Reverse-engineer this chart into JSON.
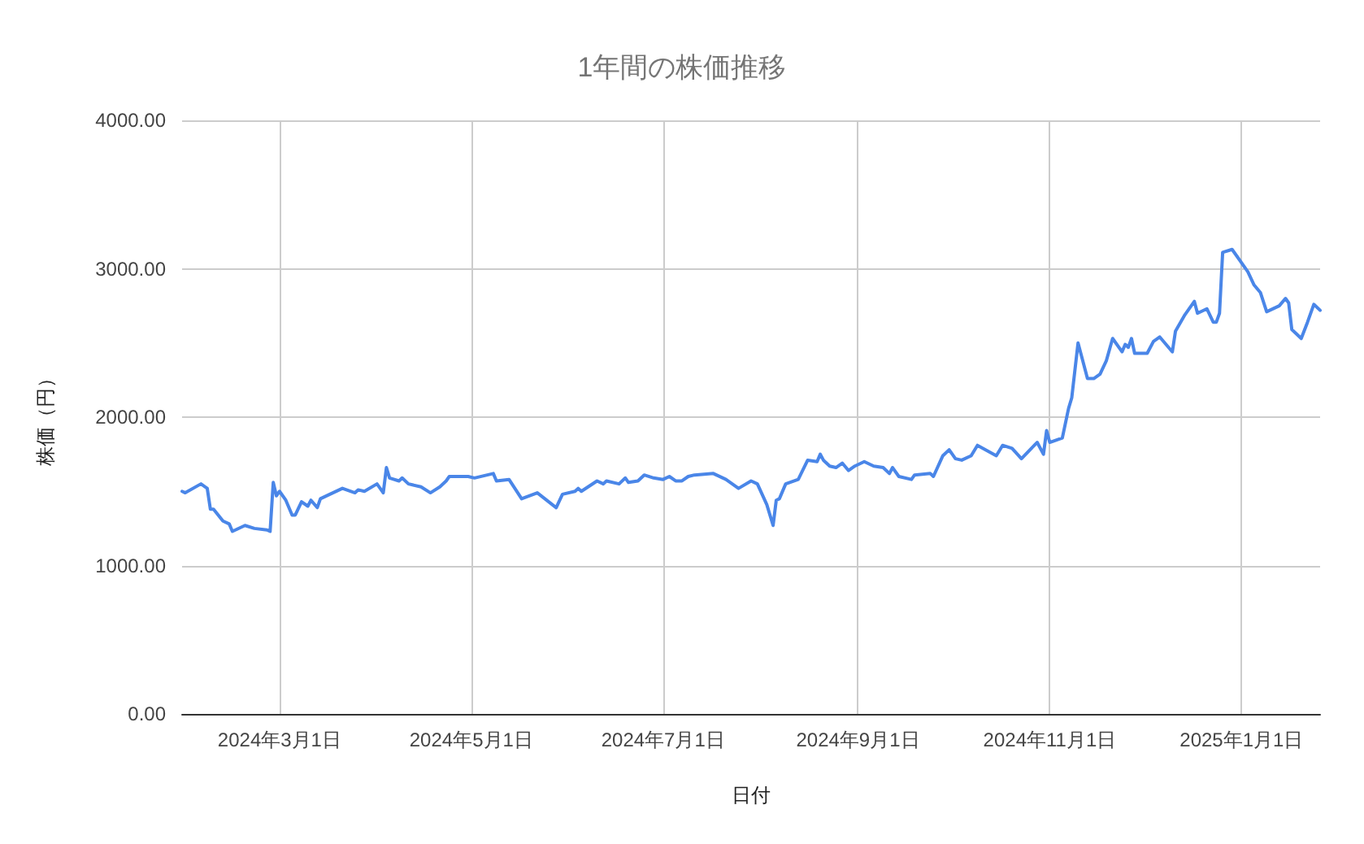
{
  "chart_data": {
    "type": "line",
    "title": "1年間の株価推移",
    "xlabel": "日付",
    "ylabel": "株価（円）",
    "x": [
      "2024-01-30",
      "2024-01-31",
      "2024-02-05",
      "2024-02-07",
      "2024-02-08",
      "2024-02-09",
      "2024-02-12",
      "2024-02-14",
      "2024-02-15",
      "2024-02-19",
      "2024-02-22",
      "2024-02-26",
      "2024-02-27",
      "2024-02-28",
      "2024-02-29",
      "2024-03-01",
      "2024-03-03",
      "2024-03-05",
      "2024-03-06",
      "2024-03-08",
      "2024-03-10",
      "2024-03-11",
      "2024-03-13",
      "2024-03-14",
      "2024-03-17",
      "2024-03-21",
      "2024-03-25",
      "2024-03-26",
      "2024-03-28",
      "2024-04-01",
      "2024-04-03",
      "2024-04-04",
      "2024-04-05",
      "2024-04-08",
      "2024-04-09",
      "2024-04-11",
      "2024-04-15",
      "2024-04-18",
      "2024-04-21",
      "2024-04-23",
      "2024-04-24",
      "2024-04-26",
      "2024-04-30",
      "2024-05-02",
      "2024-05-08",
      "2024-05-09",
      "2024-05-13",
      "2024-05-17",
      "2024-05-22",
      "2024-05-28",
      "2024-05-30",
      "2024-06-03",
      "2024-06-04",
      "2024-06-05",
      "2024-06-10",
      "2024-06-12",
      "2024-06-13",
      "2024-06-17",
      "2024-06-19",
      "2024-06-20",
      "2024-06-23",
      "2024-06-25",
      "2024-06-28",
      "2024-07-01",
      "2024-07-03",
      "2024-07-05",
      "2024-07-07",
      "2024-07-09",
      "2024-07-11",
      "2024-07-17",
      "2024-07-21",
      "2024-07-25",
      "2024-07-29",
      "2024-07-31",
      "2024-08-03",
      "2024-08-05",
      "2024-08-06",
      "2024-08-07",
      "2024-08-09",
      "2024-08-13",
      "2024-08-16",
      "2024-08-19",
      "2024-08-20",
      "2024-08-21",
      "2024-08-23",
      "2024-08-25",
      "2024-08-27",
      "2024-08-29",
      "2024-08-31",
      "2024-09-03",
      "2024-09-06",
      "2024-09-09",
      "2024-09-11",
      "2024-09-12",
      "2024-09-14",
      "2024-09-18",
      "2024-09-19",
      "2024-09-24",
      "2024-09-25",
      "2024-09-28",
      "2024-09-30",
      "2024-10-02",
      "2024-10-04",
      "2024-10-07",
      "2024-10-09",
      "2024-10-15",
      "2024-10-17",
      "2024-10-20",
      "2024-10-23",
      "2024-10-28",
      "2024-10-30",
      "2024-10-31",
      "2024-11-01",
      "2024-11-05",
      "2024-11-07",
      "2024-11-08",
      "2024-11-10",
      "2024-11-13",
      "2024-11-15",
      "2024-11-17",
      "2024-11-19",
      "2024-11-21",
      "2024-11-24",
      "2024-11-25",
      "2024-11-26",
      "2024-11-27",
      "2024-11-28",
      "2024-12-02",
      "2024-12-04",
      "2024-12-06",
      "2024-12-10",
      "2024-12-11",
      "2024-12-14",
      "2024-12-17",
      "2024-12-18",
      "2024-12-21",
      "2024-12-23",
      "2024-12-24",
      "2024-12-25",
      "2024-12-26",
      "2024-12-29",
      "2025-01-03",
      "2025-01-05",
      "2025-01-07",
      "2025-01-09",
      "2025-01-13",
      "2025-01-15",
      "2025-01-16",
      "2025-01-17",
      "2025-01-20",
      "2025-01-22",
      "2025-01-24",
      "2025-01-26"
    ],
    "series": [
      {
        "color": "#4a86e8",
        "values": [
          1500,
          1490,
          1550,
          1520,
          1380,
          1380,
          1300,
          1280,
          1230,
          1270,
          1250,
          1240,
          1230,
          1560,
          1470,
          1500,
          1440,
          1340,
          1340,
          1430,
          1400,
          1440,
          1390,
          1450,
          1480,
          1520,
          1490,
          1510,
          1500,
          1550,
          1490,
          1660,
          1590,
          1570,
          1590,
          1550,
          1530,
          1490,
          1530,
          1570,
          1600,
          1600,
          1600,
          1590,
          1620,
          1570,
          1580,
          1450,
          1490,
          1390,
          1480,
          1500,
          1520,
          1500,
          1570,
          1550,
          1570,
          1550,
          1590,
          1560,
          1570,
          1610,
          1590,
          1580,
          1600,
          1570,
          1570,
          1600,
          1610,
          1620,
          1580,
          1520,
          1570,
          1550,
          1410,
          1270,
          1440,
          1450,
          1550,
          1580,
          1710,
          1700,
          1750,
          1710,
          1670,
          1660,
          1690,
          1640,
          1670,
          1700,
          1670,
          1660,
          1620,
          1660,
          1600,
          1580,
          1610,
          1620,
          1600,
          1740,
          1780,
          1720,
          1710,
          1740,
          1810,
          1740,
          1810,
          1790,
          1720,
          1830,
          1750,
          1910,
          1830,
          1860,
          2060,
          2130,
          2500,
          2260,
          2260,
          2290,
          2380,
          2530,
          2440,
          2490,
          2470,
          2530,
          2430,
          2430,
          2510,
          2540,
          2440,
          2580,
          2690,
          2780,
          2700,
          2730,
          2640,
          2640,
          2700,
          3110,
          3130,
          2980,
          2890,
          2840,
          2710,
          2750,
          2800,
          2770,
          2590,
          2530,
          2640,
          2760,
          2720
        ]
      }
    ],
    "xlim": [
      "2024-01-30",
      "2025-01-26"
    ],
    "xticks": [
      {
        "value": "2024-03-01",
        "label": "2024年3月1日"
      },
      {
        "value": "2024-05-01",
        "label": "2024年5月1日"
      },
      {
        "value": "2024-07-01",
        "label": "2024年7月1日"
      },
      {
        "value": "2024-09-01",
        "label": "2024年9月1日"
      },
      {
        "value": "2024-11-01",
        "label": "2024年11月1日"
      },
      {
        "value": "2025-01-01",
        "label": "2025年1月1日"
      }
    ],
    "ylim": [
      0,
      4000
    ],
    "yticks": [
      {
        "value": 0,
        "label": "0.00"
      },
      {
        "value": 1000,
        "label": "1000.00"
      },
      {
        "value": 2000,
        "label": "2000.00"
      },
      {
        "value": 3000,
        "label": "3000.00"
      },
      {
        "value": 4000,
        "label": "4000.00"
      }
    ],
    "grid": true,
    "marker": "none",
    "line_style": "solid"
  }
}
